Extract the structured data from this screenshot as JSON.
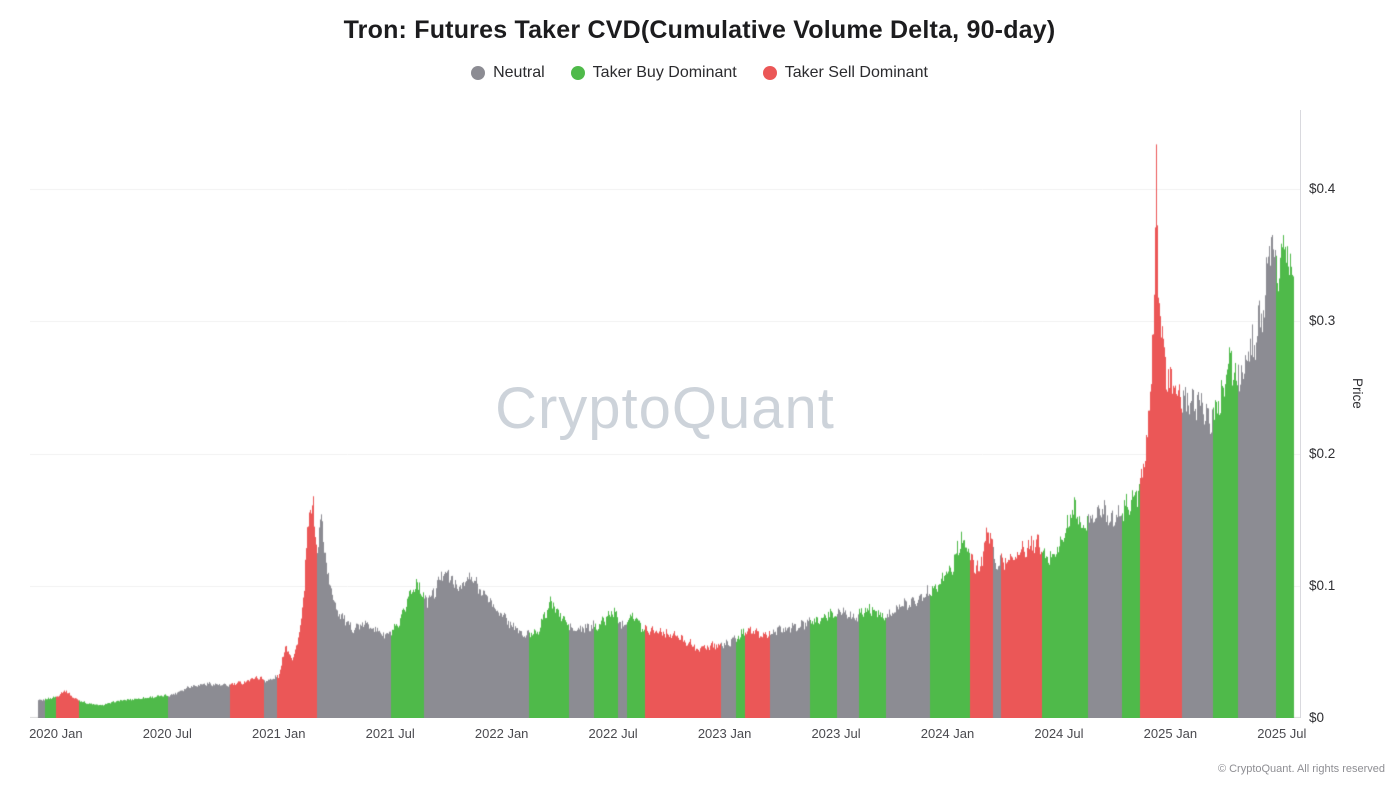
{
  "header": {
    "title": "Tron: Futures Taker CVD(Cumulative Volume Delta, 90-day)"
  },
  "legend": [
    {
      "label": "Neutral",
      "color": "#8C8C93"
    },
    {
      "label": "Taker Buy Dominant",
      "color": "#4FBA4A"
    },
    {
      "label": "Taker Sell Dominant",
      "color": "#EB5757"
    }
  ],
  "watermark": "CryptoQuant",
  "footer": "© CryptoQuant. All rights reserved",
  "chart_data": {
    "type": "bar",
    "title": "Tron: Futures Taker CVD(Cumulative Volume Delta, 90-day)",
    "xlabel": "",
    "ylabel": "Price",
    "ylim": [
      0,
      0.46
    ],
    "x_range": [
      2019.92,
      2025.55
    ],
    "grid": true,
    "legend_position": "top-center",
    "y_ticks": [
      {
        "value": 0,
        "label": "$0"
      },
      {
        "value": 0.1,
        "label": "$0.1"
      },
      {
        "value": 0.2,
        "label": "$0.2"
      },
      {
        "value": 0.3,
        "label": "$0.3"
      },
      {
        "value": 0.4,
        "label": "$0.4"
      }
    ],
    "x_ticks": [
      {
        "t": 2020.0,
        "label": "2020 Jan"
      },
      {
        "t": 2020.5,
        "label": "2020 Jul"
      },
      {
        "t": 2021.0,
        "label": "2021 Jan"
      },
      {
        "t": 2021.5,
        "label": "2021 Jul"
      },
      {
        "t": 2022.0,
        "label": "2022 Jan"
      },
      {
        "t": 2022.5,
        "label": "2022 Jul"
      },
      {
        "t": 2023.0,
        "label": "2023 Jan"
      },
      {
        "t": 2023.5,
        "label": "2023 Jul"
      },
      {
        "t": 2024.0,
        "label": "2024 Jan"
      },
      {
        "t": 2024.5,
        "label": "2024 Jul"
      },
      {
        "t": 2025.0,
        "label": "2025 Jan"
      },
      {
        "t": 2025.5,
        "label": "2025 Jul"
      }
    ],
    "regime_colors": {
      "neutral": "#8C8C93",
      "buy": "#4FBA4A",
      "sell": "#EB5757"
    },
    "price_keypoints": [
      [
        2019.92,
        0.013
      ],
      [
        2020.0,
        0.016
      ],
      [
        2020.04,
        0.021
      ],
      [
        2020.08,
        0.015
      ],
      [
        2020.14,
        0.011
      ],
      [
        2020.2,
        0.0095
      ],
      [
        2020.28,
        0.013
      ],
      [
        2020.36,
        0.0145
      ],
      [
        2020.44,
        0.016
      ],
      [
        2020.52,
        0.0175
      ],
      [
        2020.6,
        0.024
      ],
      [
        2020.68,
        0.026
      ],
      [
        2020.76,
        0.0245
      ],
      [
        2020.84,
        0.027
      ],
      [
        2020.9,
        0.031
      ],
      [
        2020.95,
        0.028
      ],
      [
        2021.0,
        0.032
      ],
      [
        2021.03,
        0.056
      ],
      [
        2021.06,
        0.044
      ],
      [
        2021.09,
        0.062
      ],
      [
        2021.11,
        0.09
      ],
      [
        2021.13,
        0.148
      ],
      [
        2021.15,
        0.165
      ],
      [
        2021.17,
        0.125
      ],
      [
        2021.19,
        0.152
      ],
      [
        2021.22,
        0.105
      ],
      [
        2021.26,
        0.082
      ],
      [
        2021.32,
        0.068
      ],
      [
        2021.4,
        0.071
      ],
      [
        2021.48,
        0.062
      ],
      [
        2021.54,
        0.07
      ],
      [
        2021.58,
        0.092
      ],
      [
        2021.62,
        0.103
      ],
      [
        2021.66,
        0.088
      ],
      [
        2021.7,
        0.096
      ],
      [
        2021.74,
        0.113
      ],
      [
        2021.8,
        0.098
      ],
      [
        2021.86,
        0.106
      ],
      [
        2021.92,
        0.094
      ],
      [
        2021.98,
        0.081
      ],
      [
        2022.04,
        0.071
      ],
      [
        2022.1,
        0.062
      ],
      [
        2022.16,
        0.066
      ],
      [
        2022.22,
        0.088
      ],
      [
        2022.26,
        0.078
      ],
      [
        2022.32,
        0.066
      ],
      [
        2022.38,
        0.068
      ],
      [
        2022.44,
        0.071
      ],
      [
        2022.5,
        0.081
      ],
      [
        2022.54,
        0.07
      ],
      [
        2022.58,
        0.079
      ],
      [
        2022.63,
        0.068
      ],
      [
        2022.7,
        0.066
      ],
      [
        2022.78,
        0.062
      ],
      [
        2022.84,
        0.057
      ],
      [
        2022.88,
        0.052
      ],
      [
        2022.94,
        0.055
      ],
      [
        2023.0,
        0.0555
      ],
      [
        2023.06,
        0.061
      ],
      [
        2023.1,
        0.068
      ],
      [
        2023.16,
        0.062
      ],
      [
        2023.24,
        0.066
      ],
      [
        2023.32,
        0.069
      ],
      [
        2023.4,
        0.073
      ],
      [
        2023.47,
        0.078
      ],
      [
        2023.53,
        0.081
      ],
      [
        2023.58,
        0.076
      ],
      [
        2023.65,
        0.083
      ],
      [
        2023.72,
        0.077
      ],
      [
        2023.8,
        0.085
      ],
      [
        2023.88,
        0.091
      ],
      [
        2023.95,
        0.101
      ],
      [
        2024.02,
        0.114
      ],
      [
        2024.06,
        0.137
      ],
      [
        2024.1,
        0.121
      ],
      [
        2024.14,
        0.111
      ],
      [
        2024.18,
        0.143
      ],
      [
        2024.22,
        0.117
      ],
      [
        2024.28,
        0.121
      ],
      [
        2024.34,
        0.127
      ],
      [
        2024.4,
        0.134
      ],
      [
        2024.44,
        0.119
      ],
      [
        2024.5,
        0.129
      ],
      [
        2024.54,
        0.147
      ],
      [
        2024.57,
        0.161
      ],
      [
        2024.6,
        0.142
      ],
      [
        2024.65,
        0.152
      ],
      [
        2024.7,
        0.158
      ],
      [
        2024.75,
        0.149
      ],
      [
        2024.8,
        0.161
      ],
      [
        2024.84,
        0.167
      ],
      [
        2024.87,
        0.178
      ],
      [
        2024.9,
        0.22
      ],
      [
        2024.925,
        0.31
      ],
      [
        2024.935,
        0.43
      ],
      [
        2024.945,
        0.33
      ],
      [
        2024.96,
        0.285
      ],
      [
        2024.98,
        0.262
      ],
      [
        2025.0,
        0.25
      ],
      [
        2025.04,
        0.244
      ],
      [
        2025.08,
        0.235
      ],
      [
        2025.13,
        0.242
      ],
      [
        2025.18,
        0.224
      ],
      [
        2025.22,
        0.238
      ],
      [
        2025.26,
        0.272
      ],
      [
        2025.3,
        0.254
      ],
      [
        2025.34,
        0.268
      ],
      [
        2025.38,
        0.288
      ],
      [
        2025.42,
        0.315
      ],
      [
        2025.45,
        0.358
      ],
      [
        2025.48,
        0.335
      ],
      [
        2025.5,
        0.357
      ],
      [
        2025.53,
        0.342
      ],
      [
        2025.55,
        0.335
      ]
    ],
    "regimes": [
      {
        "start": 2019.92,
        "regime": "neutral"
      },
      {
        "start": 2019.95,
        "regime": "buy"
      },
      {
        "start": 2020.0,
        "regime": "sell"
      },
      {
        "start": 2020.1,
        "regime": "buy"
      },
      {
        "start": 2020.5,
        "regime": "neutral"
      },
      {
        "start": 2020.78,
        "regime": "sell"
      },
      {
        "start": 2020.93,
        "regime": "neutral"
      },
      {
        "start": 2020.99,
        "regime": "sell"
      },
      {
        "start": 2021.17,
        "regime": "neutral"
      },
      {
        "start": 2021.5,
        "regime": "buy"
      },
      {
        "start": 2021.65,
        "regime": "neutral"
      },
      {
        "start": 2022.12,
        "regime": "buy"
      },
      {
        "start": 2022.3,
        "regime": "neutral"
      },
      {
        "start": 2022.41,
        "regime": "buy"
      },
      {
        "start": 2022.52,
        "regime": "neutral"
      },
      {
        "start": 2022.56,
        "regime": "buy"
      },
      {
        "start": 2022.64,
        "regime": "sell"
      },
      {
        "start": 2022.98,
        "regime": "neutral"
      },
      {
        "start": 2023.05,
        "regime": "buy"
      },
      {
        "start": 2023.09,
        "regime": "sell"
      },
      {
        "start": 2023.2,
        "regime": "neutral"
      },
      {
        "start": 2023.38,
        "regime": "buy"
      },
      {
        "start": 2023.5,
        "regime": "neutral"
      },
      {
        "start": 2023.6,
        "regime": "buy"
      },
      {
        "start": 2023.72,
        "regime": "neutral"
      },
      {
        "start": 2023.92,
        "regime": "buy"
      },
      {
        "start": 2024.1,
        "regime": "sell"
      },
      {
        "start": 2024.2,
        "regime": "neutral"
      },
      {
        "start": 2024.24,
        "regime": "sell"
      },
      {
        "start": 2024.42,
        "regime": "buy"
      },
      {
        "start": 2024.63,
        "regime": "neutral"
      },
      {
        "start": 2024.78,
        "regime": "buy"
      },
      {
        "start": 2024.86,
        "regime": "sell"
      },
      {
        "start": 2025.05,
        "regime": "neutral"
      },
      {
        "start": 2025.19,
        "regime": "buy"
      },
      {
        "start": 2025.3,
        "regime": "neutral"
      },
      {
        "start": 2025.47,
        "regime": "buy"
      }
    ]
  }
}
